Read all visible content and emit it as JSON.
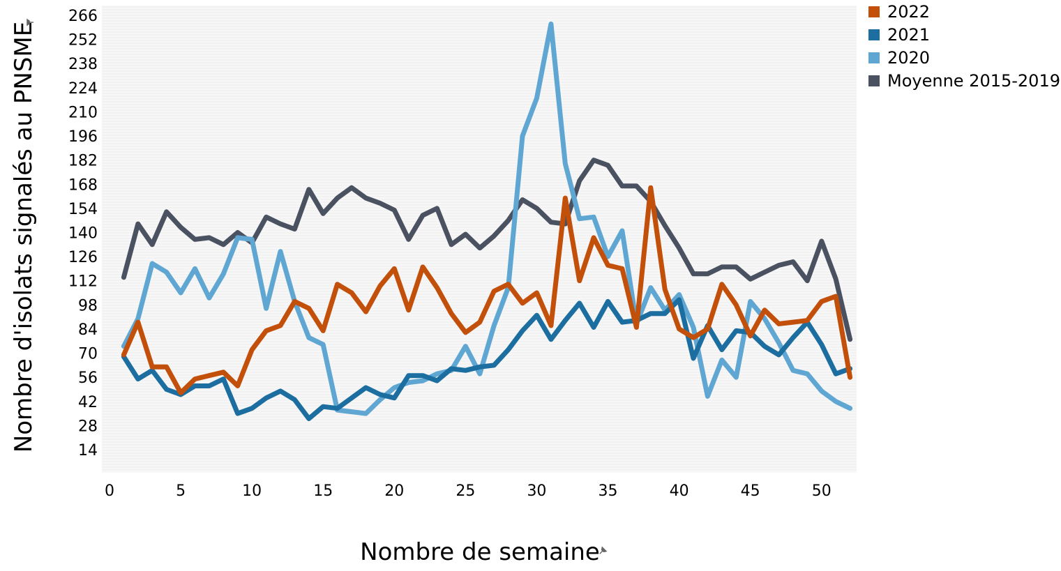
{
  "chart_data": {
    "type": "line",
    "xlabel": "Nombre de semaine",
    "ylabel": "Nombre d'isolats signalés au PNSME",
    "x": [
      1,
      2,
      3,
      4,
      5,
      6,
      7,
      8,
      9,
      10,
      11,
      12,
      13,
      14,
      15,
      16,
      17,
      18,
      19,
      20,
      21,
      22,
      23,
      24,
      25,
      26,
      27,
      28,
      29,
      30,
      31,
      32,
      33,
      34,
      35,
      36,
      37,
      38,
      39,
      40,
      41,
      42,
      43,
      44,
      45,
      46,
      47,
      48,
      49,
      50,
      51,
      52
    ],
    "xticks": [
      0,
      5,
      10,
      15,
      20,
      25,
      30,
      35,
      40,
      45,
      50
    ],
    "yticks": [
      14,
      28,
      42,
      56,
      70,
      84,
      98,
      112,
      126,
      140,
      154,
      168,
      182,
      196,
      210,
      224,
      238,
      252,
      266
    ],
    "xlim": [
      0,
      53
    ],
    "ylim": [
      0,
      266
    ],
    "legend_position": "top-right",
    "series": [
      {
        "name": "2022",
        "color": "#c2500a",
        "values": [
          69,
          88,
          62,
          62,
          47,
          55,
          57,
          59,
          51,
          72,
          83,
          86,
          100,
          96,
          83,
          110,
          105,
          94,
          109,
          119,
          95,
          120,
          108,
          93,
          82,
          88,
          106,
          110,
          99,
          105,
          86,
          160,
          112,
          137,
          121,
          119,
          85,
          166,
          107,
          84,
          79,
          84,
          110,
          98,
          80,
          95,
          87,
          88,
          89,
          100,
          103,
          56
        ]
      },
      {
        "name": "2021",
        "color": "#1b6e9f",
        "values": [
          68,
          55,
          60,
          49,
          46,
          51,
          51,
          55,
          35,
          38,
          44,
          48,
          43,
          32,
          39,
          38,
          44,
          50,
          46,
          44,
          57,
          57,
          54,
          61,
          60,
          62,
          63,
          72,
          83,
          92,
          78,
          89,
          99,
          85,
          100,
          88,
          89,
          93,
          93,
          101,
          67,
          86,
          72,
          83,
          82,
          74,
          69,
          79,
          88,
          75,
          58,
          61
        ]
      },
      {
        "name": "2020",
        "color": "#5fa6d3",
        "values": [
          74,
          90,
          122,
          117,
          105,
          119,
          102,
          116,
          137,
          136,
          96,
          129,
          100,
          79,
          75,
          37,
          36,
          35,
          43,
          50,
          53,
          54,
          58,
          60,
          74,
          58,
          86,
          108,
          196,
          218,
          261,
          180,
          148,
          149,
          126,
          141,
          87,
          108,
          95,
          104,
          85,
          45,
          66,
          56,
          100,
          90,
          76,
          60,
          58,
          48,
          42,
          38
        ]
      },
      {
        "name": "Moyenne 2015-2019",
        "color": "#4a5160",
        "values": [
          114,
          145,
          133,
          152,
          143,
          136,
          137,
          133,
          140,
          134,
          149,
          145,
          142,
          165,
          151,
          160,
          166,
          160,
          157,
          153,
          136,
          150,
          154,
          133,
          139,
          131,
          138,
          147,
          159,
          154,
          146,
          145,
          170,
          182,
          179,
          167,
          167,
          158,
          144,
          131,
          116,
          116,
          120,
          120,
          113,
          117,
          121,
          123,
          112,
          135,
          113,
          78
        ]
      }
    ]
  }
}
